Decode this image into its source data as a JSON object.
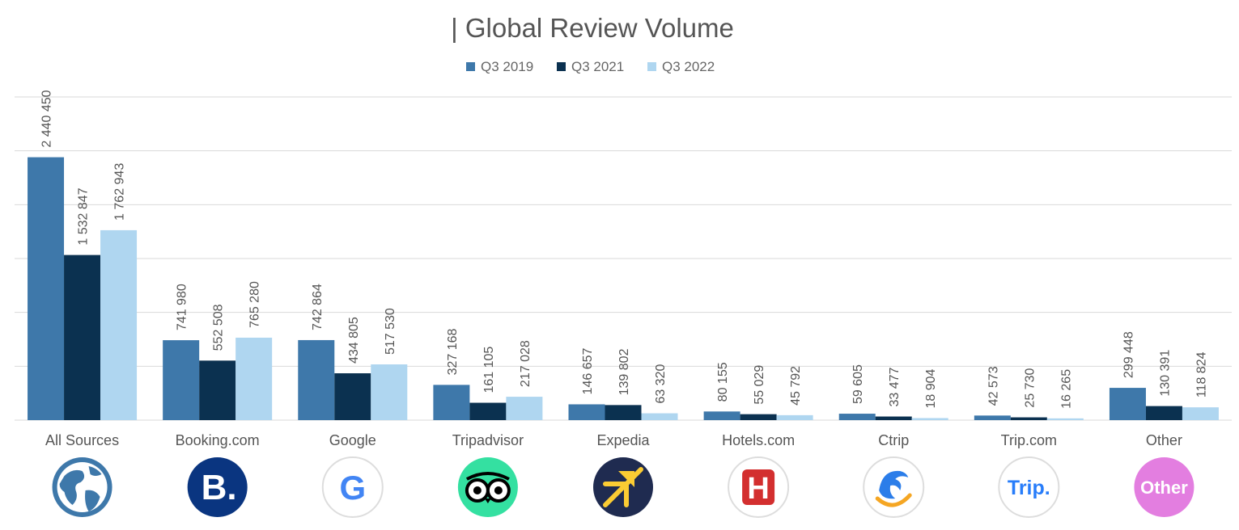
{
  "chart_data": {
    "type": "bar",
    "title": "| Global Review Volume",
    "legend_position": "top",
    "grid": true,
    "ylim": [
      0,
      3000000
    ],
    "categories": [
      "All Sources",
      "Booking.com",
      "Google",
      "Tripadvisor",
      "Expedia",
      "Hotels.com",
      "Ctrip",
      "Trip.com",
      "Other"
    ],
    "series": [
      {
        "name": "Q3 2019",
        "color": "#3e78aa",
        "values": [
          2440450,
          741980,
          742864,
          327168,
          146657,
          80155,
          59605,
          42573,
          299448
        ],
        "labels": [
          "2 440 450",
          "741 980",
          "742 864",
          "327 168",
          "146 657",
          "80 155",
          "59 605",
          "42 573",
          "299 448"
        ]
      },
      {
        "name": "Q3 2021",
        "color": "#0b3150",
        "values": [
          1532847,
          552508,
          434805,
          161105,
          139802,
          55029,
          33477,
          25730,
          130391
        ],
        "labels": [
          "1 532 847",
          "552 508",
          "434 805",
          "161 105",
          "139 802",
          "55 029",
          "33 477",
          "25 730",
          "130 391"
        ]
      },
      {
        "name": "Q3 2022",
        "color": "#afd6f0",
        "values": [
          1762943,
          765280,
          517530,
          217028,
          63320,
          45792,
          18904,
          16265,
          118824
        ],
        "labels": [
          "1 762 943",
          "765 280",
          "517 530",
          "217 028",
          "63 320",
          "45 792",
          "18 904",
          "16 265",
          "118 824"
        ]
      }
    ],
    "icons": [
      {
        "name": "globe-icon",
        "text": ""
      },
      {
        "name": "booking-logo-icon",
        "text": "B."
      },
      {
        "name": "google-logo-icon",
        "text": "G"
      },
      {
        "name": "tripadvisor-owl-icon",
        "text": ""
      },
      {
        "name": "expedia-plane-icon",
        "text": ""
      },
      {
        "name": "hotels-com-logo-icon",
        "text": "H"
      },
      {
        "name": "ctrip-dolphin-icon",
        "text": ""
      },
      {
        "name": "trip-com-logo-icon",
        "text": "Trip."
      },
      {
        "name": "other-badge-icon",
        "text": "Other"
      }
    ]
  }
}
